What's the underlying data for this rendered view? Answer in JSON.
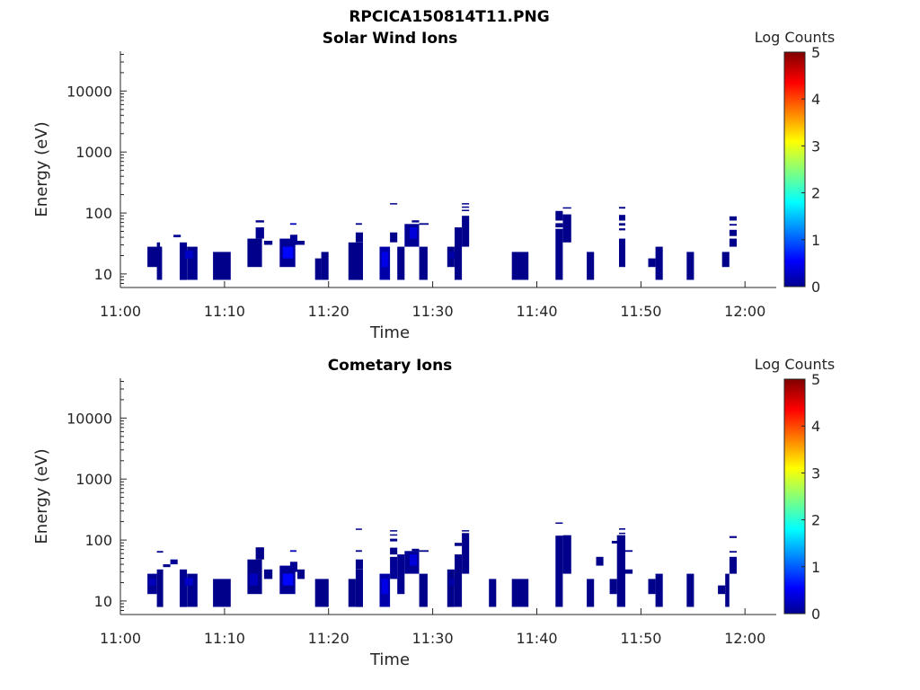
{
  "figure_title": "RPCICA150814T11.PNG",
  "chart_data": [
    {
      "type": "heatmap",
      "title": "Solar Wind Ions",
      "xlabel": "Time",
      "ylabel": "Energy (eV)",
      "y_scale": "log",
      "xlim_minutes": [
        0,
        63
      ],
      "ylim": [
        6,
        45000
      ],
      "x_ticks": [
        "11:00",
        "11:10",
        "11:20",
        "11:30",
        "11:40",
        "11:50",
        "12:00"
      ],
      "y_ticks": [
        "10",
        "100",
        "1000",
        "10000"
      ],
      "colorbar": {
        "label": "Log Counts",
        "range": [
          0,
          5
        ],
        "ticks": [
          "0",
          "1",
          "2",
          "3",
          "4",
          "5"
        ],
        "colormap": "jet",
        "placement": "right"
      },
      "cells": [
        [
          2.6,
          3.9,
          13,
          28,
          0.05
        ],
        [
          3.5,
          4.0,
          8,
          28,
          0.05
        ],
        [
          3.5,
          3.8,
          28,
          33,
          0.05
        ],
        [
          5.1,
          5.8,
          40,
          44,
          0.1
        ],
        [
          5.7,
          6.4,
          8,
          33,
          0.08
        ],
        [
          6.4,
          7.4,
          8,
          28,
          0.08
        ],
        [
          6.2,
          7.0,
          18,
          24,
          0.35
        ],
        [
          8.9,
          10.6,
          8,
          23,
          0.05
        ],
        [
          12.2,
          13.6,
          13,
          38,
          0.05
        ],
        [
          13.0,
          13.8,
          38,
          58,
          0.08
        ],
        [
          13.0,
          13.8,
          70,
          76,
          0.05
        ],
        [
          13.8,
          14.6,
          30,
          35,
          0.05
        ],
        [
          15.3,
          16.8,
          13,
          38,
          0.1
        ],
        [
          15.6,
          16.6,
          18,
          28,
          0.65
        ],
        [
          16.3,
          17.0,
          30,
          44,
          0.1
        ],
        [
          16.3,
          16.9,
          64,
          68,
          0.3
        ],
        [
          17.0,
          17.7,
          30,
          35,
          0.05
        ],
        [
          18.7,
          19.3,
          8,
          18,
          0.05
        ],
        [
          19.3,
          20.0,
          8,
          23,
          0.05
        ],
        [
          21.9,
          23.3,
          8,
          33,
          0.05
        ],
        [
          22.6,
          23.3,
          33,
          48,
          0.05
        ],
        [
          22.6,
          23.2,
          64,
          68,
          0.05
        ],
        [
          24.9,
          25.9,
          8,
          28,
          0.2
        ],
        [
          25.1,
          25.7,
          13,
          23,
          0.5
        ],
        [
          25.9,
          26.6,
          33,
          48,
          0.05
        ],
        [
          25.9,
          26.6,
          138,
          145,
          0.05
        ],
        [
          26.6,
          27.3,
          8,
          28,
          0.05
        ],
        [
          27.3,
          28.7,
          28,
          66,
          0.1
        ],
        [
          27.8,
          28.5,
          38,
          58,
          0.45
        ],
        [
          28.0,
          28.7,
          70,
          76,
          0.05
        ],
        [
          28.7,
          29.5,
          8,
          28,
          0.05
        ],
        [
          28.7,
          29.6,
          64,
          68,
          0.05
        ],
        [
          31.4,
          32.1,
          13,
          28,
          0.05
        ],
        [
          31.6,
          32.1,
          18,
          23,
          0.2
        ],
        [
          32.1,
          32.8,
          8,
          58,
          0.05
        ],
        [
          32.8,
          33.5,
          28,
          90,
          0.05
        ],
        [
          32.8,
          33.5,
          108,
          113,
          0.05
        ],
        [
          32.8,
          33.5,
          122,
          128,
          0.05
        ],
        [
          32.8,
          33.5,
          138,
          145,
          0.05
        ],
        [
          37.6,
          39.2,
          8,
          23,
          0.05
        ],
        [
          41.8,
          42.5,
          8,
          55,
          0.05
        ],
        [
          41.8,
          42.5,
          58,
          68,
          0.05
        ],
        [
          41.8,
          42.5,
          75,
          108,
          0.05
        ],
        [
          42.5,
          43.3,
          33,
          95,
          0.05
        ],
        [
          42.5,
          43.3,
          118,
          124,
          0.05
        ],
        [
          44.8,
          45.5,
          8,
          23,
          0.05
        ],
        [
          47.9,
          48.5,
          13,
          38,
          0.05
        ],
        [
          47.9,
          48.5,
          52,
          56,
          0.05
        ],
        [
          47.9,
          48.5,
          62,
          68,
          0.05
        ],
        [
          47.9,
          48.5,
          75,
          93,
          0.05
        ],
        [
          47.9,
          48.5,
          118,
          126,
          0.05
        ],
        [
          50.7,
          51.4,
          13,
          18,
          0.05
        ],
        [
          51.4,
          52.1,
          8,
          28,
          0.05
        ],
        [
          54.4,
          55.1,
          8,
          23,
          0.05
        ],
        [
          57.8,
          58.5,
          13,
          23,
          0.05
        ],
        [
          58.5,
          59.2,
          28,
          38,
          0.05
        ],
        [
          58.5,
          59.2,
          42,
          53,
          0.05
        ],
        [
          58.5,
          59.2,
          62,
          66,
          0.05
        ],
        [
          58.5,
          59.2,
          75,
          88,
          0.05
        ]
      ]
    },
    {
      "type": "heatmap",
      "title": "Cometary Ions",
      "xlabel": "Time",
      "ylabel": "Energy (eV)",
      "y_scale": "log",
      "xlim_minutes": [
        0,
        63
      ],
      "ylim": [
        6,
        45000
      ],
      "x_ticks": [
        "11:00",
        "11:10",
        "11:20",
        "11:30",
        "11:40",
        "11:50",
        "12:00"
      ],
      "y_ticks": [
        "10",
        "100",
        "1000",
        "10000"
      ],
      "colorbar": {
        "label": "Log Counts",
        "range": [
          0,
          5
        ],
        "ticks": [
          "0",
          "1",
          "2",
          "3",
          "4",
          "5"
        ],
        "colormap": "jet",
        "placement": "right"
      },
      "cells": [
        [
          2.6,
          3.5,
          13,
          28,
          0.1
        ],
        [
          2.8,
          3.4,
          18,
          23,
          0.3
        ],
        [
          3.5,
          4.1,
          8,
          33,
          0.05
        ],
        [
          3.5,
          4.1,
          62,
          66,
          0.05
        ],
        [
          4.1,
          4.8,
          36,
          40,
          0.05
        ],
        [
          4.8,
          5.5,
          40,
          48,
          0.1
        ],
        [
          5.7,
          6.4,
          8,
          33,
          0.08
        ],
        [
          6.4,
          7.4,
          8,
          28,
          0.08
        ],
        [
          6.2,
          7.0,
          18,
          24,
          0.35
        ],
        [
          8.9,
          10.6,
          8,
          23,
          0.05
        ],
        [
          12.2,
          13.6,
          13,
          48,
          0.05
        ],
        [
          12.4,
          13.2,
          18,
          28,
          0.3
        ],
        [
          13.0,
          13.8,
          48,
          76,
          0.05
        ],
        [
          13.8,
          14.6,
          23,
          33,
          0.05
        ],
        [
          15.3,
          16.8,
          13,
          38,
          0.1
        ],
        [
          15.6,
          16.6,
          18,
          28,
          0.65
        ],
        [
          16.3,
          17.0,
          30,
          44,
          0.1
        ],
        [
          16.3,
          16.9,
          64,
          68,
          0.3
        ],
        [
          17.0,
          17.7,
          23,
          33,
          0.05
        ],
        [
          18.7,
          20.0,
          8,
          23,
          0.05
        ],
        [
          21.9,
          22.6,
          8,
          23,
          0.05
        ],
        [
          22.6,
          23.3,
          8,
          33,
          0.05
        ],
        [
          22.6,
          23.3,
          33,
          48,
          0.05
        ],
        [
          22.6,
          23.2,
          64,
          68,
          0.05
        ],
        [
          22.6,
          23.2,
          148,
          154,
          0.05
        ],
        [
          24.9,
          25.9,
          8,
          28,
          0.2
        ],
        [
          25.1,
          25.7,
          13,
          23,
          0.5
        ],
        [
          25.9,
          26.6,
          23,
          53,
          0.1
        ],
        [
          25.9,
          26.6,
          58,
          75,
          0.05
        ],
        [
          25.9,
          26.6,
          95,
          105,
          0.05
        ],
        [
          25.9,
          26.6,
          118,
          124,
          0.05
        ],
        [
          25.9,
          26.6,
          138,
          145,
          0.05
        ],
        [
          26.6,
          27.3,
          13,
          58,
          0.08
        ],
        [
          27.3,
          28.7,
          28,
          66,
          0.1
        ],
        [
          27.8,
          28.5,
          38,
          58,
          0.45
        ],
        [
          28.0,
          28.7,
          66,
          72,
          0.05
        ],
        [
          28.7,
          29.5,
          8,
          28,
          0.05
        ],
        [
          28.7,
          29.6,
          64,
          68,
          0.05
        ],
        [
          31.4,
          32.1,
          8,
          33,
          0.05
        ],
        [
          31.6,
          32.1,
          18,
          23,
          0.2
        ],
        [
          32.1,
          32.8,
          8,
          58,
          0.05
        ],
        [
          32.1,
          32.8,
          80,
          90,
          0.05
        ],
        [
          32.8,
          33.5,
          28,
          130,
          0.05
        ],
        [
          32.8,
          33.5,
          138,
          145,
          0.05
        ],
        [
          35.4,
          36.1,
          8,
          23,
          0.05
        ],
        [
          37.6,
          39.2,
          8,
          23,
          0.05
        ],
        [
          41.8,
          42.5,
          8,
          118,
          0.05
        ],
        [
          41.8,
          42.5,
          186,
          194,
          0.05
        ],
        [
          42.5,
          43.3,
          28,
          120,
          0.05
        ],
        [
          44.8,
          45.5,
          8,
          23,
          0.05
        ],
        [
          45.7,
          46.4,
          38,
          53,
          0.05
        ],
        [
          47.0,
          47.7,
          13,
          23,
          0.05
        ],
        [
          47.2,
          48.5,
          88,
          97,
          0.05
        ],
        [
          47.7,
          48.5,
          8,
          120,
          0.05
        ],
        [
          47.9,
          48.5,
          126,
          132,
          0.05
        ],
        [
          47.9,
          48.5,
          148,
          156,
          0.05
        ],
        [
          48.5,
          49.2,
          28,
          33,
          0.05
        ],
        [
          48.5,
          49.2,
          64,
          68,
          0.05
        ],
        [
          50.7,
          51.4,
          13,
          23,
          0.05
        ],
        [
          51.4,
          52.1,
          8,
          28,
          0.05
        ],
        [
          54.4,
          55.1,
          8,
          28,
          0.05
        ],
        [
          57.4,
          58.1,
          13,
          18,
          0.05
        ],
        [
          58.1,
          58.5,
          8,
          28,
          0.05
        ],
        [
          58.5,
          59.2,
          28,
          53,
          0.05
        ],
        [
          58.5,
          59.2,
          62,
          66,
          0.05
        ],
        [
          58.5,
          59.2,
          108,
          116,
          0.05
        ]
      ]
    }
  ]
}
